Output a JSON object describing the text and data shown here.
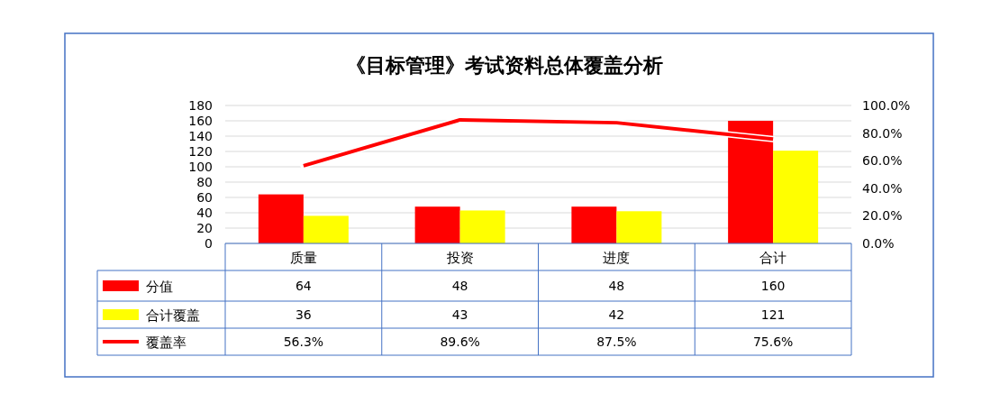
{
  "chart_data": {
    "type": "bar",
    "title": "《目标管理》考试资料总体覆盖分析",
    "categories": [
      "质量",
      "投资",
      "进度",
      "合计"
    ],
    "series": [
      {
        "name": "分值",
        "color": "#ff0000",
        "values": [
          64,
          48,
          48,
          160
        ]
      },
      {
        "name": "合计覆盖",
        "color": "#ffff00",
        "values": [
          36,
          43,
          42,
          121
        ]
      },
      {
        "name": "覆盖率",
        "type": "line",
        "axis": "y2",
        "color": "#ff0000",
        "values": [
          56.3,
          89.6,
          87.5,
          75.6
        ],
        "value_labels": [
          "56.3%",
          "89.6%",
          "87.5%",
          "75.6%"
        ]
      }
    ],
    "ylim": [
      0,
      180
    ],
    "yticks": [
      0,
      20,
      40,
      60,
      80,
      100,
      120,
      140,
      160,
      180
    ],
    "y2lim": [
      0,
      100
    ],
    "y2ticks": [
      {
        "value": 0,
        "label": "0.0%"
      },
      {
        "value": 20,
        "label": "20.0%"
      },
      {
        "value": 40,
        "label": "40.0%"
      },
      {
        "value": 60,
        "label": "60.0%"
      },
      {
        "value": 80,
        "label": "80.0%"
      },
      {
        "value": 100,
        "label": "100.0%"
      }
    ],
    "grid": "y",
    "data_labels": true,
    "legend": "bottom",
    "marker": "none",
    "line_style": "solid"
  }
}
